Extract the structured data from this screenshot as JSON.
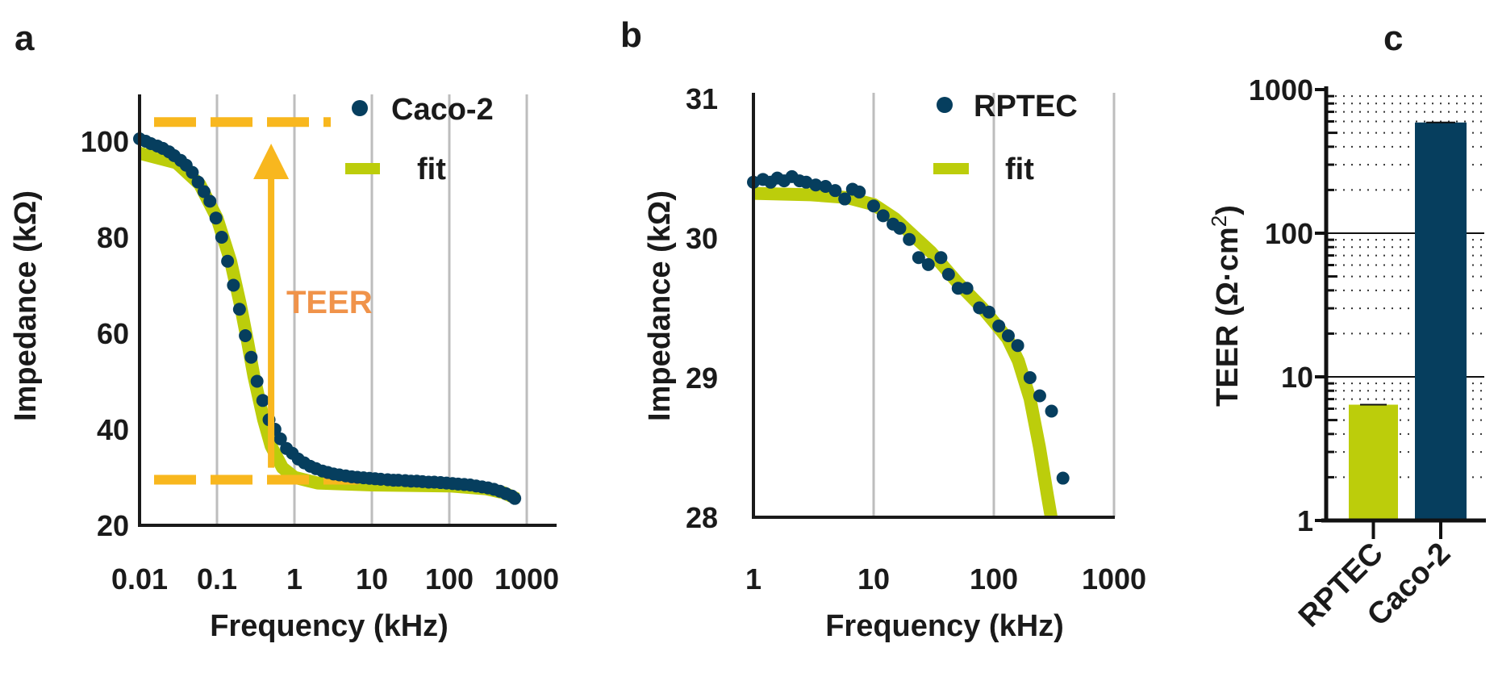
{
  "colors": {
    "data": "#063E5E",
    "fit": "#BCCD0B",
    "dashed": "#F8B71E",
    "teer_text": "#F0934A",
    "rptec_bar": "#BCCD0B",
    "caco2_bar": "#063E5E",
    "grid": "#BDBDBD"
  },
  "chart_data": [
    {
      "panel_label": "a",
      "type": "scatter",
      "xlabel": "Frequency (kHz)",
      "ylabel": "Impedance (kΩ)",
      "x_scale": "log",
      "xlim": [
        0.01,
        2500
      ],
      "ylim": [
        20,
        110
      ],
      "x_ticks": [
        "0.01",
        "0.1",
        "1",
        "10",
        "100",
        "1000"
      ],
      "y_ticks": [
        "20",
        "40",
        "60",
        "80",
        "100"
      ],
      "grid": "vertical at decades",
      "legend": "top-right",
      "annotation": {
        "text": "TEER",
        "upper_level": 104,
        "lower_level": 29.5,
        "arrow_x": 0.5
      },
      "series": [
        {
          "name": "Caco-2",
          "kind": "points",
          "points": [
            [
              0.01,
              100.5
            ],
            [
              0.012,
              100
            ],
            [
              0.014,
              99.5
            ],
            [
              0.017,
              99
            ],
            [
              0.02,
              98.5
            ],
            [
              0.024,
              97.8
            ],
            [
              0.028,
              97
            ],
            [
              0.034,
              96
            ],
            [
              0.04,
              95
            ],
            [
              0.048,
              93.5
            ],
            [
              0.057,
              91.5
            ],
            [
              0.068,
              89.5
            ],
            [
              0.081,
              87.5
            ],
            [
              0.097,
              84
            ],
            [
              0.115,
              80
            ],
            [
              0.137,
              75
            ],
            [
              0.163,
              70
            ],
            [
              0.195,
              65
            ],
            [
              0.232,
              59.5
            ],
            [
              0.276,
              55
            ],
            [
              0.329,
              50
            ],
            [
              0.39,
              46
            ],
            [
              0.47,
              42
            ],
            [
              0.56,
              40
            ],
            [
              0.66,
              38
            ],
            [
              0.79,
              36
            ],
            [
              0.94,
              35
            ],
            [
              1.12,
              33.8
            ],
            [
              1.34,
              33
            ],
            [
              1.6,
              32.3
            ],
            [
              1.9,
              31.8
            ],
            [
              2.3,
              31.3
            ],
            [
              2.7,
              31
            ],
            [
              3.2,
              30.7
            ],
            [
              3.8,
              30.5
            ],
            [
              4.6,
              30.3
            ],
            [
              5.5,
              30.1
            ],
            [
              6.5,
              30
            ],
            [
              7.8,
              29.9
            ],
            [
              9.3,
              29.8
            ],
            [
              11,
              29.7
            ],
            [
              13,
              29.6
            ],
            [
              16,
              29.5
            ],
            [
              19,
              29.4
            ],
            [
              22,
              29.4
            ],
            [
              27,
              29.3
            ],
            [
              32,
              29.2
            ],
            [
              38,
              29.2
            ],
            [
              45,
              29.1
            ],
            [
              54,
              29
            ],
            [
              64,
              29
            ],
            [
              77,
              28.9
            ],
            [
              92,
              28.8
            ],
            [
              110,
              28.7
            ],
            [
              130,
              28.6
            ],
            [
              156,
              28.5
            ],
            [
              186,
              28.4
            ],
            [
              222,
              28.2
            ],
            [
              265,
              28
            ],
            [
              316,
              27.8
            ],
            [
              377,
              27.5
            ],
            [
              450,
              27.1
            ],
            [
              537,
              26.6
            ],
            [
              640,
              26.1
            ],
            [
              700,
              25.6
            ]
          ]
        },
        {
          "name": "fit",
          "kind": "line",
          "points": [
            [
              0.01,
              97.5
            ],
            [
              0.03,
              95.5
            ],
            [
              0.06,
              91
            ],
            [
              0.1,
              84
            ],
            [
              0.15,
              75
            ],
            [
              0.2,
              66
            ],
            [
              0.25,
              58
            ],
            [
              0.3,
              51
            ],
            [
              0.4,
              42
            ],
            [
              0.5,
              36.5
            ],
            [
              0.7,
              32
            ],
            [
              1,
              30
            ],
            [
              2,
              28.8
            ],
            [
              10,
              28.4
            ],
            [
              100,
              28.2
            ],
            [
              300,
              27.6
            ],
            [
              500,
              26.8
            ],
            [
              750,
              25.5
            ]
          ]
        }
      ]
    },
    {
      "panel_label": "b",
      "type": "scatter",
      "xlabel": "Frequency (kHz)",
      "ylabel": "Impedance (kΩ)",
      "x_scale": "log",
      "xlim": [
        1,
        1000
      ],
      "ylim": [
        28,
        31
      ],
      "x_ticks": [
        "1",
        "10",
        "100",
        "1000"
      ],
      "y_ticks": [
        "28",
        "29",
        "30",
        "31"
      ],
      "grid": "vertical at decades",
      "legend": "top-right",
      "series": [
        {
          "name": "RPTEC",
          "kind": "points",
          "points": [
            [
              1,
              30.4
            ],
            [
              1.2,
              30.42
            ],
            [
              1.39,
              30.4
            ],
            [
              1.58,
              30.43
            ],
            [
              1.8,
              30.41
            ],
            [
              2.09,
              30.44
            ],
            [
              2.42,
              30.41
            ],
            [
              2.75,
              30.4
            ],
            [
              3.3,
              30.38
            ],
            [
              3.98,
              30.37
            ],
            [
              4.79,
              30.34
            ],
            [
              5.75,
              30.28
            ],
            [
              6.67,
              30.35
            ],
            [
              7.6,
              30.33
            ],
            [
              10,
              30.23
            ],
            [
              12,
              30.16
            ],
            [
              14.5,
              30.1
            ],
            [
              16.5,
              30.07
            ],
            [
              19.8,
              29.99
            ],
            [
              23.7,
              29.86
            ],
            [
              28.5,
              29.81
            ],
            [
              36.3,
              29.86
            ],
            [
              42,
              29.74
            ],
            [
              50.5,
              29.64
            ],
            [
              59.7,
              29.64
            ],
            [
              75.9,
              29.5
            ],
            [
              91,
              29.47
            ],
            [
              110,
              29.37
            ],
            [
              132,
              29.3
            ],
            [
              158,
              29.23
            ],
            [
              200,
              29.0
            ],
            [
              241,
              28.87
            ],
            [
              302,
              28.76
            ],
            [
              376,
              28.28
            ]
          ]
        },
        {
          "name": "fit",
          "kind": "line",
          "points": [
            [
              1,
              30.32
            ],
            [
              3,
              30.31
            ],
            [
              6,
              30.29
            ],
            [
              10,
              30.24
            ],
            [
              15,
              30.14
            ],
            [
              20,
              30.04
            ],
            [
              30,
              29.9
            ],
            [
              50,
              29.68
            ],
            [
              80,
              29.5
            ],
            [
              100,
              29.4
            ],
            [
              130,
              29.28
            ],
            [
              160,
              29.12
            ],
            [
              200,
              28.85
            ],
            [
              240,
              28.5
            ],
            [
              280,
              28.15
            ],
            [
              300,
              28.0
            ]
          ]
        }
      ]
    },
    {
      "panel_label": "c",
      "type": "bar",
      "ylabel": "TEER (Ω·cm²)",
      "ylabel_main": "TEER (Ω·cm",
      "ylabel_sup": "2",
      "ylabel_end": ")",
      "y_scale": "log",
      "ylim": [
        1,
        1000
      ],
      "y_ticks": [
        "1",
        "10",
        "100",
        "1000"
      ],
      "grid": "major solid, minor dotted",
      "categories": [
        "RPTEC",
        "Caco-2"
      ],
      "values": [
        6.4,
        590
      ]
    }
  ]
}
